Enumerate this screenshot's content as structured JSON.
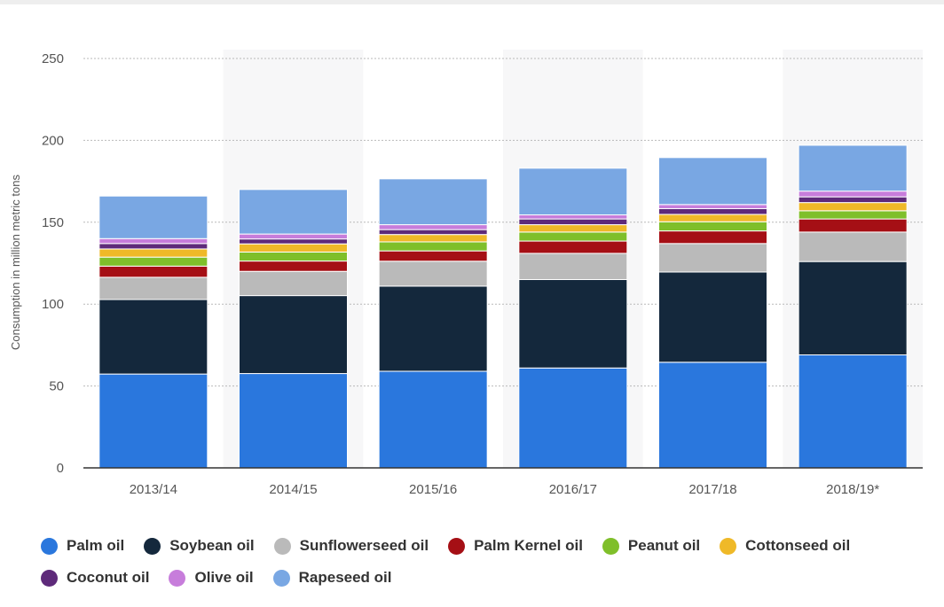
{
  "chart_data": {
    "type": "bar",
    "stacked": true,
    "ylabel": "Consumption in million metric tons",
    "xlabel": "",
    "ylim": [
      0,
      250
    ],
    "yticks": [
      0,
      50,
      100,
      150,
      200,
      250
    ],
    "grid": true,
    "legend_position": "bottom",
    "categories": [
      "2013/14",
      "2014/15",
      "2015/16",
      "2016/17",
      "2017/18",
      "2018/19*"
    ],
    "series": [
      {
        "name": "Palm oil",
        "color": "#2a77dd",
        "values": [
          57.3,
          57.6,
          59.0,
          61.0,
          64.5,
          69.0
        ]
      },
      {
        "name": "Soybean oil",
        "color": "#14283c",
        "values": [
          45.5,
          47.6,
          52.0,
          54.0,
          55.1,
          57.0
        ]
      },
      {
        "name": "Sunflowerseed oil",
        "color": "#bababa",
        "values": [
          13.6,
          14.8,
          15.2,
          16.0,
          17.4,
          18.0
        ]
      },
      {
        "name": "Palm Kernel oil",
        "color": "#a50f15",
        "values": [
          6.8,
          6.3,
          6.3,
          7.5,
          7.7,
          8.0
        ]
      },
      {
        "name": "Peanut oil",
        "color": "#7fbf2a",
        "values": [
          5.5,
          5.5,
          5.5,
          5.5,
          5.6,
          5.0
        ]
      },
      {
        "name": "Cottonseed oil",
        "color": "#efb928",
        "values": [
          5.0,
          5.0,
          4.5,
          4.5,
          4.5,
          5.0
        ]
      },
      {
        "name": "Coconut oil",
        "color": "#5e2a7a",
        "values": [
          3.3,
          3.0,
          3.0,
          3.5,
          3.5,
          3.5
        ]
      },
      {
        "name": "Olive oil",
        "color": "#c77ddb",
        "values": [
          3.0,
          3.0,
          3.0,
          2.5,
          2.5,
          3.5
        ]
      },
      {
        "name": "Rapeseed oil",
        "color": "#79a7e3",
        "values": [
          26.0,
          27.2,
          28.0,
          28.5,
          28.7,
          28.0
        ]
      }
    ]
  }
}
